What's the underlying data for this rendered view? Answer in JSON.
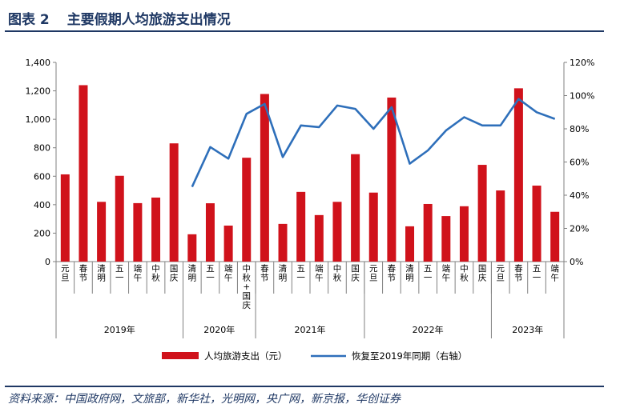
{
  "figure": {
    "label": "图表 2",
    "title": "主要假期人均旅游支出情况",
    "source": "资料来源：中国政府网，文旅部，新华社，光明网，央广网，新京报，华创证券"
  },
  "colors": {
    "bar": "#d0121b",
    "line": "#2e6fba",
    "accent": "#1f3864",
    "axis": "#808080"
  },
  "chart_data": {
    "type": "bar",
    "title": "",
    "categories": [
      "元旦",
      "春节",
      "清明",
      "五一",
      "端午",
      "中秋",
      "国庆",
      "清明",
      "五一",
      "端午",
      "中秋+国庆",
      "春节",
      "清明",
      "五一",
      "端午",
      "中秋",
      "国庆",
      "元旦",
      "春节",
      "清明",
      "五一",
      "端午",
      "中秋",
      "国庆",
      "元旦",
      "春节",
      "五一",
      "端午"
    ],
    "year_groups": [
      {
        "label": "2019年",
        "count": 7
      },
      {
        "label": "2020年",
        "count": 4
      },
      {
        "label": "2021年",
        "count": 6
      },
      {
        "label": "2022年",
        "count": 7
      },
      {
        "label": "2023年",
        "count": 4
      }
    ],
    "series": [
      {
        "name": "人均旅游支出（元）",
        "type": "bar",
        "axis": "left",
        "values": [
          613,
          1240,
          420,
          603,
          411,
          450,
          831,
          192,
          410,
          253,
          730,
          1178,
          265,
          490,
          327,
          420,
          755,
          485,
          1153,
          248,
          405,
          320,
          389,
          680,
          500,
          1218,
          534,
          350
        ]
      },
      {
        "name": "恢复至2019年同期（右轴）",
        "type": "line",
        "axis": "right",
        "values": [
          null,
          null,
          null,
          null,
          null,
          null,
          null,
          45,
          69,
          62,
          89,
          95,
          63,
          82,
          81,
          94,
          92,
          80,
          93,
          59,
          67,
          79,
          87,
          82,
          82,
          98,
          90,
          86
        ]
      }
    ],
    "y_left": {
      "min": 0,
      "max": 1400,
      "step": 200,
      "ticks": [
        "0",
        "200",
        "400",
        "600",
        "800",
        "1,000",
        "1,200",
        "1,400"
      ]
    },
    "y_right": {
      "min": 0,
      "max": 120,
      "step": 20,
      "ticks": [
        "0%",
        "20%",
        "40%",
        "60%",
        "80%",
        "100%",
        "120%"
      ]
    },
    "legend_position": "bottom",
    "grid": false
  }
}
